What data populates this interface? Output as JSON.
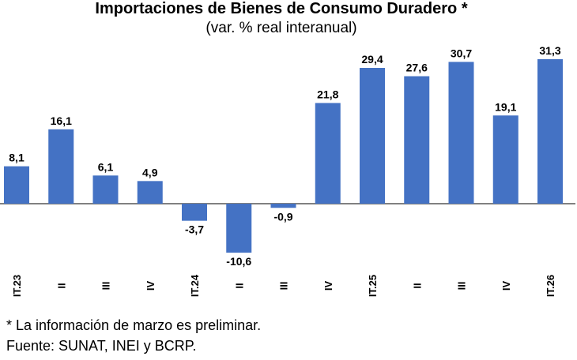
{
  "chart_data": {
    "type": "bar",
    "title": "Importaciones de Bienes de Consumo Duradero *",
    "subtitle": "(var. % real interanual)",
    "categories": [
      "IT.23",
      "II",
      "III",
      "IV",
      "IT.24",
      "II",
      "III",
      "IV",
      "IT.25",
      "II",
      "III",
      "IV",
      "IT.26"
    ],
    "values": [
      8.1,
      16.1,
      6.1,
      4.9,
      -3.7,
      -10.6,
      -0.9,
      21.8,
      29.4,
      27.6,
      30.7,
      19.1,
      31.3
    ],
    "labels": [
      "8,1",
      "16,1",
      "6,1",
      "4,9",
      "-3,7",
      "-10,6",
      "-0,9",
      "21,8",
      "29,4",
      "27,6",
      "30,7",
      "19,1",
      "31,3"
    ],
    "bar_color": "#4472C4",
    "grid": false,
    "legend": "none"
  },
  "footnotes": [
    "* La información de marzo es preliminar.",
    "Fuente: SUNAT, INEI y BCRP."
  ]
}
